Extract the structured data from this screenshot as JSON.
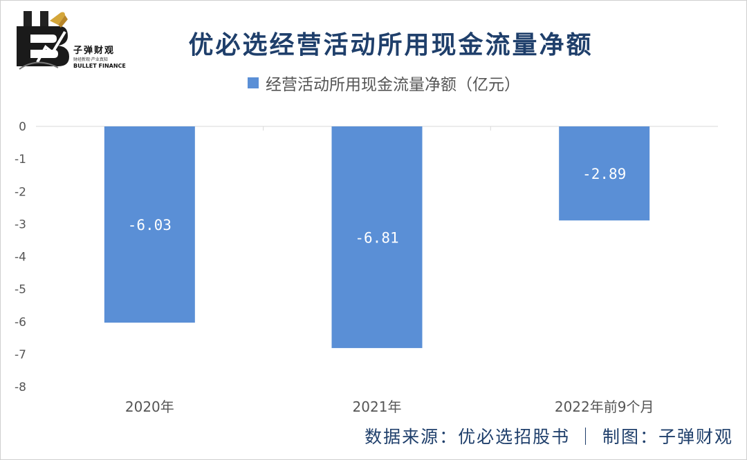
{
  "title": "优必选经营活动所用现金流量净额",
  "logo": {
    "name_cn": "子弹财观",
    "tagline": "财经新观·产业真知",
    "name_en": "BULLET FINANCE"
  },
  "source_note": "数据来源：优必选招股书 ｜ 制图：子弹财观",
  "chart_data": {
    "type": "bar",
    "title": "优必选经营活动所用现金流量净额",
    "categories": [
      "2020年",
      "2021年",
      "2022年前9个月"
    ],
    "series": [
      {
        "name": "经营活动所用现金流量净额（亿元）",
        "values": [
          -6.03,
          -6.81,
          -2.89
        ],
        "labels": [
          "-6.03",
          "-6.81",
          "-2.89"
        ],
        "color": "#5a8fd6"
      }
    ],
    "yticks": [
      "0",
      "-1",
      "-2",
      "-3",
      "-4",
      "-5",
      "-6",
      "-7",
      "-8"
    ],
    "ylim": [
      -8,
      0
    ],
    "xlabel": "",
    "ylabel": "",
    "legend": "top",
    "grid": false
  }
}
